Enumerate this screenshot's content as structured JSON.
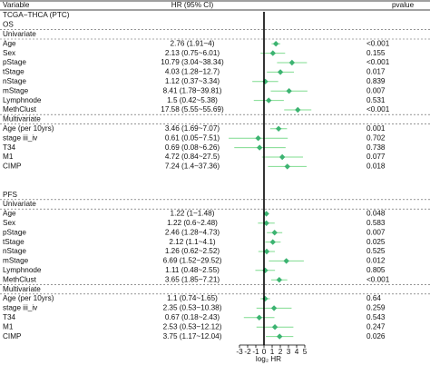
{
  "chart_data": {
    "type": "forest",
    "headers": {
      "variable": "Variable",
      "hr": "HR (95% CI)",
      "pvalue": "pvalue"
    },
    "xlabel": "log₂ HR",
    "xlim": [
      -4.5,
      6
    ],
    "xticks": [
      -3,
      -2,
      -1,
      0,
      1,
      2,
      3,
      4,
      5
    ],
    "color": "#3cb371",
    "ci_color": "#7fdc8f",
    "rows": [
      {
        "label": "TCGA−THCA (PTC)"
      },
      {
        "label": "OS"
      },
      {
        "label": "Univariate"
      },
      {
        "label": "Age",
        "hr": "2.76 (1.91~4)",
        "pvalue": "<0.001",
        "estimate": 1.46,
        "low": 0.93,
        "high": 2.0
      },
      {
        "label": "Sex",
        "hr": "2.13 (0.75~6.01)",
        "pvalue": "0.155",
        "estimate": 1.09,
        "low": -0.42,
        "high": 2.59
      },
      {
        "label": "pStage",
        "hr": "10.79 (3.04~38.34)",
        "pvalue": "<0.001",
        "estimate": 3.43,
        "low": 1.6,
        "high": 5.26
      },
      {
        "label": "tStage",
        "hr": "4.03 (1.28~12.7)",
        "pvalue": "0.017",
        "estimate": 2.01,
        "low": 0.36,
        "high": 3.67
      },
      {
        "label": "nStage",
        "hr": "1.12 (0.37~3.34)",
        "pvalue": "0.839",
        "estimate": 0.16,
        "low": -1.43,
        "high": 1.74
      },
      {
        "label": "mStage",
        "hr": "8.41 (1.78~39.81)",
        "pvalue": "0.007",
        "estimate": 3.07,
        "low": 0.83,
        "high": 5.32
      },
      {
        "label": "Lymphnode",
        "hr": "1.5 (0.42~5.38)",
        "pvalue": "0.531",
        "estimate": 0.58,
        "low": -1.25,
        "high": 2.43
      },
      {
        "label": "MethClust",
        "hr": "17.58 (5.55~55.69)",
        "pvalue": "<0.001",
        "estimate": 4.14,
        "low": 2.47,
        "high": 5.8
      },
      {
        "label": "Multivariate"
      },
      {
        "label": "Age (per 10yrs)",
        "hr": "3.46 (1.69~7.07)",
        "pvalue": "0.001",
        "estimate": 1.79,
        "low": 0.76,
        "high": 2.82
      },
      {
        "label": "stage iii_iv",
        "hr": "0.61 (0.05~7.51)",
        "pvalue": "0.702",
        "estimate": -0.71,
        "low": -4.32,
        "high": 2.91
      },
      {
        "label": "T34",
        "hr": "0.69 (0.08~6.26)",
        "pvalue": "0.738",
        "estimate": -0.54,
        "low": -3.64,
        "high": 2.65
      },
      {
        "label": "M1",
        "hr": "4.72 (0.84~27.5)",
        "pvalue": "0.077",
        "estimate": 2.24,
        "low": -0.25,
        "high": 4.78
      },
      {
        "label": "CIMP",
        "hr": "7.24 (1.4~37.36)",
        "pvalue": "0.018",
        "estimate": 2.86,
        "low": 0.49,
        "high": 5.22
      },
      {
        "label": "PFS"
      },
      {
        "label": "Univariate"
      },
      {
        "label": "Age",
        "hr": "1.22 (1~1.48)",
        "pvalue": "0.048",
        "estimate": 0.29,
        "low": 0.0,
        "high": 0.57
      },
      {
        "label": "Sex",
        "hr": "1.22 (0.6~2.48)",
        "pvalue": "0.583",
        "estimate": 0.29,
        "low": -0.74,
        "high": 1.31
      },
      {
        "label": "pStage",
        "hr": "2.46 (1.28~4.73)",
        "pvalue": "0.007",
        "estimate": 1.3,
        "low": 0.36,
        "high": 2.24
      },
      {
        "label": "tStage",
        "hr": "2.12 (1.1~4.1)",
        "pvalue": "0.025",
        "estimate": 1.08,
        "low": 0.14,
        "high": 2.04
      },
      {
        "label": "nStage",
        "hr": "1.26 (0.62~2.52)",
        "pvalue": "0.525",
        "estimate": 0.33,
        "low": -0.69,
        "high": 1.33
      },
      {
        "label": "mStage",
        "hr": "6.69 (1.52~29.52)",
        "pvalue": "0.012",
        "estimate": 2.74,
        "low": 0.6,
        "high": 4.88
      },
      {
        "label": "Lymphnode",
        "hr": "1.11 (0.48~2.55)",
        "pvalue": "0.805",
        "estimate": 0.15,
        "low": -1.06,
        "high": 1.35
      },
      {
        "label": "MethClust",
        "hr": "3.65 (1.85~7.21)",
        "pvalue": "<0.001",
        "estimate": 1.87,
        "low": 0.89,
        "high": 2.85
      },
      {
        "label": "Multivariate"
      },
      {
        "label": "Age (per 10yrs)",
        "hr": "1.1 (0.74~1.65)",
        "pvalue": "0.64",
        "estimate": 0.14,
        "low": -0.43,
        "high": 0.72
      },
      {
        "label": "stage iii_iv",
        "hr": "2.35 (0.53~10.38)",
        "pvalue": "0.259",
        "estimate": 1.23,
        "low": -0.92,
        "high": 3.38
      },
      {
        "label": "T34",
        "hr": "0.67 (0.18~2.43)",
        "pvalue": "0.543",
        "estimate": -0.58,
        "low": -2.47,
        "high": 1.28
      },
      {
        "label": "M1",
        "hr": "2.53 (0.53~12.12)",
        "pvalue": "0.247",
        "estimate": 1.34,
        "low": -0.92,
        "high": 3.6
      },
      {
        "label": "CIMP",
        "hr": "3.75 (1.17~12.04)",
        "pvalue": "0.026",
        "estimate": 1.91,
        "low": 0.23,
        "high": 3.59
      }
    ]
  }
}
